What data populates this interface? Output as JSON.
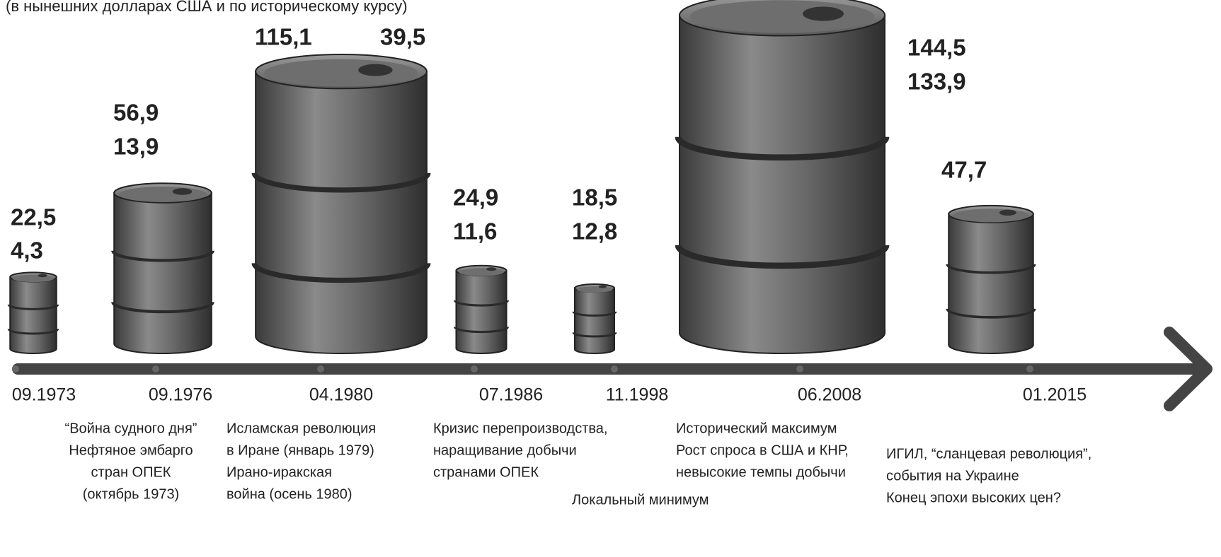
{
  "chart_data": {
    "type": "pictogram",
    "subtitle": "(в нынешних долларах США и по историческому курсу)",
    "categories": [
      "09.1973",
      "09.1976",
      "04.1980",
      "07.1986",
      "11.1998",
      "06.2008",
      "01.2015"
    ],
    "series": [
      {
        "color": "#555555",
        "values": [
          22.5,
          56.9,
          115.1,
          24.9,
          18.5,
          144.5,
          47.7
        ],
        "value_labels": [
          "22,5",
          "56,9",
          "115,1",
          "24,9",
          "18,5",
          "144,5",
          "47,7"
        ]
      },
      {
        "values": [
          4.3,
          13.9,
          39.5,
          11.6,
          12.8,
          133.9,
          null
        ],
        "value_labels": [
          "4,3",
          "13,9",
          "39,5",
          "11,6",
          "12,8",
          "133,9",
          null
        ]
      }
    ],
    "annotations": [
      [
        "“Война судного дня”",
        "Нефтяное эмбарго",
        "стран ОПЕК",
        "(октябрь 1973)"
      ],
      [
        "Исламская революция",
        "в Иране (январь 1979)",
        "Ирано-иракская",
        "война (осень 1980)"
      ],
      [
        "Кризис перепроизводства,",
        "наращивание добычи",
        "странами ОПЕК"
      ],
      [
        "Локальный минимум"
      ],
      [
        "Исторический максимум",
        "Рост спроса в США и КНР,",
        "невысокие темпы добычи"
      ],
      [
        "ИГИЛ, “сланцевая революция”,",
        "события на Украине",
        "Конец эпохи высоких цен?"
      ]
    ]
  }
}
